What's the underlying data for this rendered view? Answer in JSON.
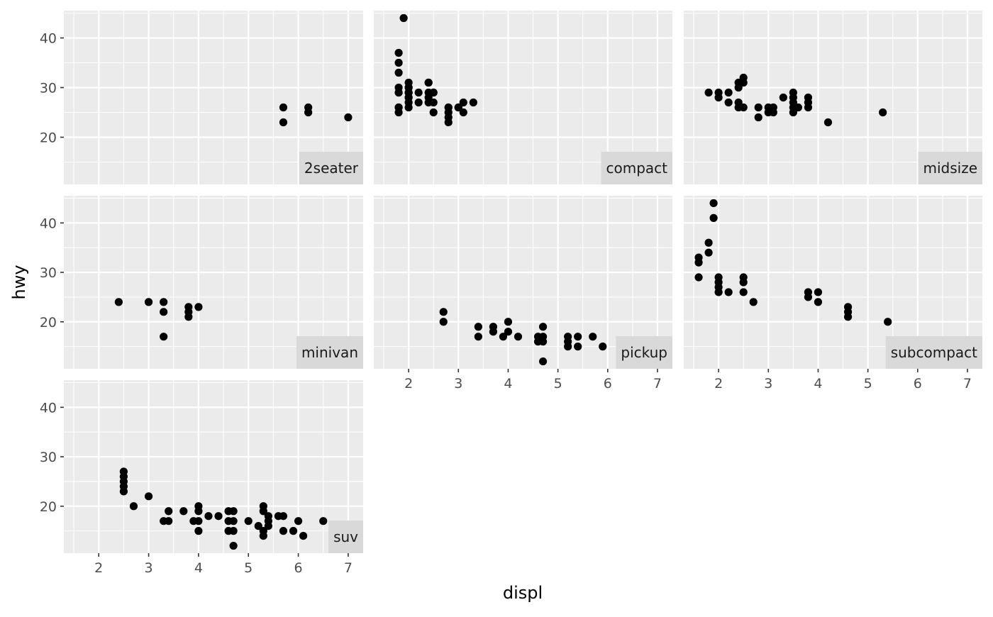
{
  "chart_data": {
    "type": "scatter",
    "facet_by": "class",
    "layout": {
      "ncol": 3,
      "nrow": 3,
      "strip_position": "bottom-right-inside"
    },
    "xlabel": "displ",
    "ylabel": "hwy",
    "xlim": [
      1.3,
      7.3
    ],
    "ylim": [
      10.5,
      45.5
    ],
    "x_ticks": [
      2,
      3,
      4,
      5,
      6,
      7
    ],
    "y_ticks": [
      20,
      30,
      40
    ],
    "grid": true,
    "colors": {
      "panel_background": "#ebebeb",
      "grid_major": "#ffffff",
      "strip_background": "#d9d9d9",
      "point": "#000000"
    },
    "panels": [
      {
        "label": "2seater",
        "points": [
          [
            5.7,
            26
          ],
          [
            5.7,
            23
          ],
          [
            6.2,
            26
          ],
          [
            6.2,
            25
          ],
          [
            7.0,
            24
          ]
        ]
      },
      {
        "label": "compact",
        "points": [
          [
            1.8,
            29
          ],
          [
            1.8,
            29
          ],
          [
            2.0,
            31
          ],
          [
            2.0,
            30
          ],
          [
            2.8,
            26
          ],
          [
            2.8,
            26
          ],
          [
            3.1,
            27
          ],
          [
            1.8,
            26
          ],
          [
            1.8,
            25
          ],
          [
            2.0,
            28
          ],
          [
            2.0,
            29
          ],
          [
            2.8,
            24
          ],
          [
            2.8,
            25
          ],
          [
            3.1,
            25
          ],
          [
            2.2,
            27
          ],
          [
            2.2,
            29
          ],
          [
            2.4,
            31
          ],
          [
            2.4,
            31
          ],
          [
            3.0,
            26
          ],
          [
            3.0,
            26
          ],
          [
            3.3,
            27
          ],
          [
            1.8,
            30
          ],
          [
            1.8,
            33
          ],
          [
            1.8,
            35
          ],
          [
            1.8,
            37
          ],
          [
            1.9,
            44
          ],
          [
            2.0,
            29
          ],
          [
            2.0,
            26
          ],
          [
            2.0,
            29
          ],
          [
            2.5,
            29
          ],
          [
            2.5,
            29
          ],
          [
            2.5,
            27
          ],
          [
            2.5,
            25
          ],
          [
            2.8,
            23
          ],
          [
            2.0,
            27
          ],
          [
            2.4,
            27
          ],
          [
            2.4,
            28
          ],
          [
            2.4,
            29
          ],
          [
            2.0,
            28
          ],
          [
            1.8,
            26
          ],
          [
            2.0,
            30
          ]
        ]
      },
      {
        "label": "midsize",
        "points": [
          [
            1.8,
            29
          ],
          [
            2.0,
            29
          ],
          [
            2.0,
            28
          ],
          [
            2.2,
            29
          ],
          [
            2.2,
            27
          ],
          [
            2.4,
            26
          ],
          [
            2.4,
            27
          ],
          [
            2.4,
            30
          ],
          [
            2.4,
            31
          ],
          [
            2.5,
            32
          ],
          [
            2.5,
            31
          ],
          [
            2.5,
            26
          ],
          [
            2.8,
            26
          ],
          [
            2.8,
            24
          ],
          [
            3.0,
            26
          ],
          [
            3.0,
            25
          ],
          [
            3.1,
            26
          ],
          [
            3.1,
            25
          ],
          [
            3.3,
            28
          ],
          [
            3.5,
            29
          ],
          [
            3.5,
            28
          ],
          [
            3.5,
            27
          ],
          [
            3.5,
            26
          ],
          [
            3.5,
            25
          ],
          [
            3.6,
            26
          ],
          [
            3.8,
            28
          ],
          [
            3.8,
            27
          ],
          [
            3.8,
            26
          ],
          [
            4.2,
            23
          ],
          [
            5.3,
            25
          ]
        ]
      },
      {
        "label": "minivan",
        "points": [
          [
            2.4,
            24
          ],
          [
            3.0,
            24
          ],
          [
            3.3,
            24
          ],
          [
            3.3,
            22
          ],
          [
            3.3,
            17
          ],
          [
            3.8,
            23
          ],
          [
            3.8,
            22
          ],
          [
            3.8,
            21
          ],
          [
            4.0,
            23
          ]
        ]
      },
      {
        "label": "pickup",
        "points": [
          [
            2.7,
            22
          ],
          [
            2.7,
            20
          ],
          [
            3.4,
            19
          ],
          [
            3.4,
            17
          ],
          [
            3.7,
            19
          ],
          [
            3.7,
            18
          ],
          [
            3.9,
            17
          ],
          [
            4.0,
            20
          ],
          [
            4.0,
            18
          ],
          [
            4.2,
            17
          ],
          [
            4.6,
            17
          ],
          [
            4.6,
            16
          ],
          [
            4.7,
            19
          ],
          [
            4.7,
            17
          ],
          [
            4.7,
            16
          ],
          [
            4.7,
            12
          ],
          [
            5.2,
            17
          ],
          [
            5.2,
            16
          ],
          [
            5.2,
            15
          ],
          [
            5.4,
            17
          ],
          [
            5.4,
            15
          ],
          [
            5.7,
            17
          ],
          [
            5.9,
            15
          ]
        ]
      },
      {
        "label": "subcompact",
        "points": [
          [
            1.6,
            33
          ],
          [
            1.6,
            32
          ],
          [
            1.6,
            29
          ],
          [
            1.8,
            36
          ],
          [
            1.8,
            34
          ],
          [
            1.9,
            44
          ],
          [
            1.9,
            41
          ],
          [
            2.0,
            29
          ],
          [
            2.0,
            28
          ],
          [
            2.0,
            27
          ],
          [
            2.0,
            26
          ],
          [
            2.2,
            26
          ],
          [
            2.5,
            29
          ],
          [
            2.5,
            28
          ],
          [
            2.5,
            26
          ],
          [
            2.7,
            24
          ],
          [
            3.8,
            26
          ],
          [
            3.8,
            25
          ],
          [
            4.0,
            26
          ],
          [
            4.0,
            24
          ],
          [
            4.6,
            23
          ],
          [
            4.6,
            22
          ],
          [
            4.6,
            21
          ],
          [
            5.4,
            20
          ]
        ]
      },
      {
        "label": "suv",
        "points": [
          [
            2.5,
            27
          ],
          [
            2.5,
            26
          ],
          [
            2.5,
            25
          ],
          [
            2.5,
            24
          ],
          [
            2.5,
            23
          ],
          [
            2.7,
            20
          ],
          [
            3.0,
            22
          ],
          [
            3.3,
            17
          ],
          [
            3.4,
            19
          ],
          [
            3.4,
            17
          ],
          [
            3.7,
            19
          ],
          [
            3.9,
            17
          ],
          [
            4.0,
            20
          ],
          [
            4.0,
            19
          ],
          [
            4.0,
            17
          ],
          [
            4.0,
            15
          ],
          [
            4.2,
            18
          ],
          [
            4.4,
            18
          ],
          [
            4.6,
            19
          ],
          [
            4.6,
            17
          ],
          [
            4.6,
            15
          ],
          [
            4.7,
            19
          ],
          [
            4.7,
            17
          ],
          [
            4.7,
            15
          ],
          [
            4.7,
            12
          ],
          [
            5.0,
            17
          ],
          [
            5.2,
            16
          ],
          [
            5.3,
            20
          ],
          [
            5.3,
            19
          ],
          [
            5.3,
            15
          ],
          [
            5.3,
            14
          ],
          [
            5.4,
            18
          ],
          [
            5.4,
            17
          ],
          [
            5.4,
            16
          ],
          [
            5.6,
            18
          ],
          [
            5.7,
            18
          ],
          [
            5.7,
            15
          ],
          [
            5.9,
            15
          ],
          [
            6.0,
            17
          ],
          [
            6.1,
            14
          ],
          [
            6.5,
            17
          ]
        ]
      }
    ]
  }
}
